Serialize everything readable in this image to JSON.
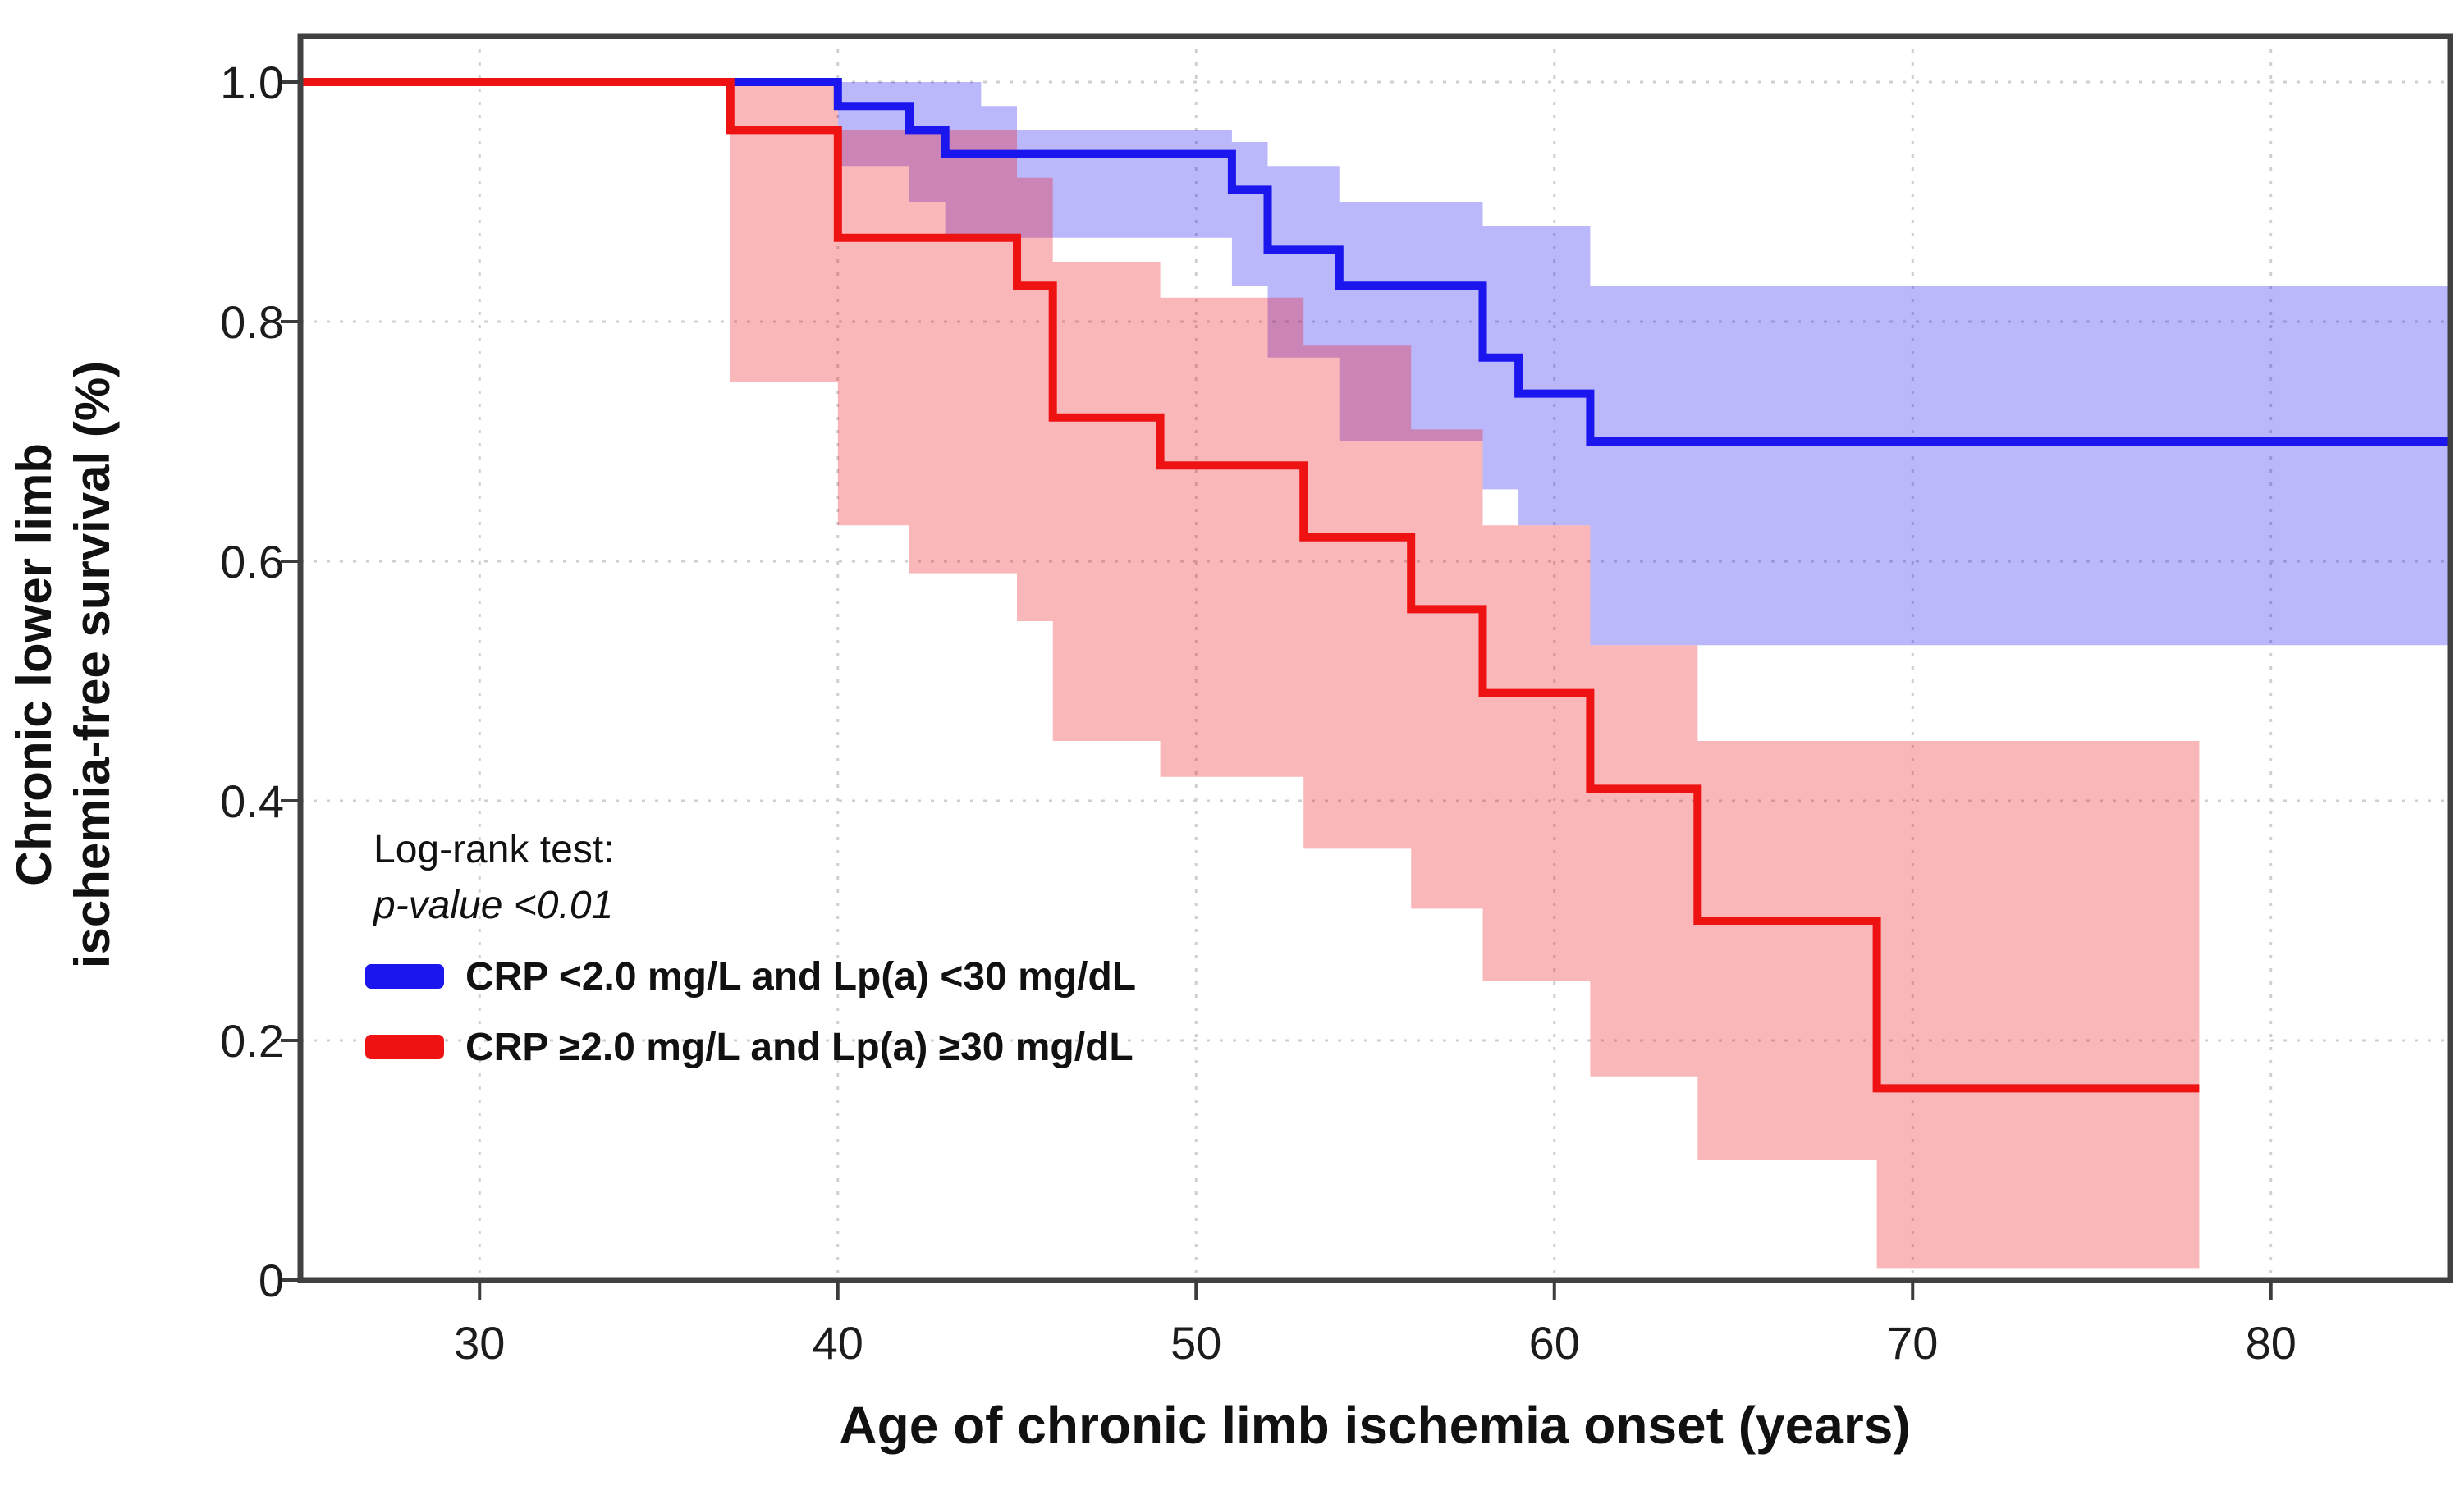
{
  "figure": {
    "background": "#ffffff",
    "annotation": {
      "line1": "Log-rank test:",
      "line2": "p-value <0.01"
    },
    "legend": {
      "items": [
        {
          "label": "CRP <2.0 mg/L and Lp(a) <30 mg/dL",
          "color": "#1b15ee"
        },
        {
          "label": "CRP ≥2.0 mg/L and Lp(a) ≥30 mg/dL",
          "color": "#ee1212"
        }
      ]
    }
  },
  "chart_data": {
    "type": "line",
    "subtype": "kaplan-meier-step-with-confidence-bands",
    "title": "",
    "xlabel": "Age of chronic limb ischemia onset (years)",
    "ylabel_lines": [
      "Chronic lower limb",
      "ischemia-free survival (%)"
    ],
    "xlim": [
      25,
      85
    ],
    "ylim": [
      0,
      1.0
    ],
    "x_ticks": [
      30,
      40,
      50,
      60,
      70,
      80
    ],
    "x_tick_labels": [
      "30",
      "40",
      "50",
      "60",
      "70",
      "80"
    ],
    "y_ticks": [
      1.0,
      0.8,
      0.6,
      0.4,
      0.2,
      0
    ],
    "y_tick_labels": [
      "1.0",
      "0.8",
      "0.6",
      "0.4",
      "0.2",
      "0"
    ],
    "grid": "dotted",
    "grid_color": "#cfcfcf",
    "border_color": "#414141",
    "legend_position": "lower-left",
    "annotation": "Log-rank test: p-value <0.01",
    "series": [
      {
        "name": "CRP <2.0 mg/L and Lp(a) <30 mg/dL",
        "color": "#1b15ee",
        "band_color": "rgba(27,21,238,0.30)",
        "end_x": 85,
        "steps": [
          [
            25,
            1.0
          ],
          [
            40,
            0.98
          ],
          [
            42,
            0.96
          ],
          [
            43,
            0.94
          ],
          [
            51,
            0.91
          ],
          [
            52,
            0.86
          ],
          [
            54,
            0.83
          ],
          [
            58,
            0.77
          ],
          [
            59,
            0.74
          ],
          [
            61,
            0.7
          ]
        ],
        "ci_upper": [
          [
            25,
            1.0
          ],
          [
            44,
            0.98
          ],
          [
            45,
            0.96
          ],
          [
            51,
            0.95
          ],
          [
            52,
            0.93
          ],
          [
            54,
            0.9
          ],
          [
            58,
            0.88
          ],
          [
            61,
            0.83
          ]
        ],
        "ci_lower": [
          [
            25,
            1.0
          ],
          [
            40,
            0.93
          ],
          [
            42,
            0.9
          ],
          [
            43,
            0.87
          ],
          [
            51,
            0.83
          ],
          [
            52,
            0.77
          ],
          [
            54,
            0.7
          ],
          [
            58,
            0.66
          ],
          [
            59,
            0.63
          ],
          [
            61,
            0.53
          ]
        ]
      },
      {
        "name": "CRP ≥2.0 mg/L and Lp(a) ≥30 mg/dL",
        "color": "#ee1212",
        "band_color": "rgba(238,18,26,0.30)",
        "end_x": 78,
        "steps": [
          [
            25,
            1.0
          ],
          [
            37,
            0.96
          ],
          [
            40,
            0.87
          ],
          [
            45,
            0.83
          ],
          [
            46,
            0.72
          ],
          [
            49,
            0.68
          ],
          [
            53,
            0.62
          ],
          [
            56,
            0.56
          ],
          [
            58,
            0.49
          ],
          [
            61,
            0.41
          ],
          [
            64,
            0.3
          ],
          [
            69,
            0.16
          ]
        ],
        "ci_upper": [
          [
            25,
            1.0
          ],
          [
            40,
            0.96
          ],
          [
            45,
            0.92
          ],
          [
            46,
            0.85
          ],
          [
            49,
            0.82
          ],
          [
            53,
            0.78
          ],
          [
            56,
            0.71
          ],
          [
            58,
            0.63
          ],
          [
            61,
            0.53
          ],
          [
            64,
            0.45
          ]
        ],
        "ci_lower": [
          [
            25,
            1.0
          ],
          [
            37,
            0.75
          ],
          [
            40,
            0.63
          ],
          [
            42,
            0.59
          ],
          [
            45,
            0.55
          ],
          [
            46,
            0.45
          ],
          [
            49,
            0.42
          ],
          [
            53,
            0.36
          ],
          [
            56,
            0.31
          ],
          [
            58,
            0.25
          ],
          [
            61,
            0.17
          ],
          [
            64,
            0.1
          ],
          [
            69,
            0.01
          ]
        ]
      }
    ]
  }
}
